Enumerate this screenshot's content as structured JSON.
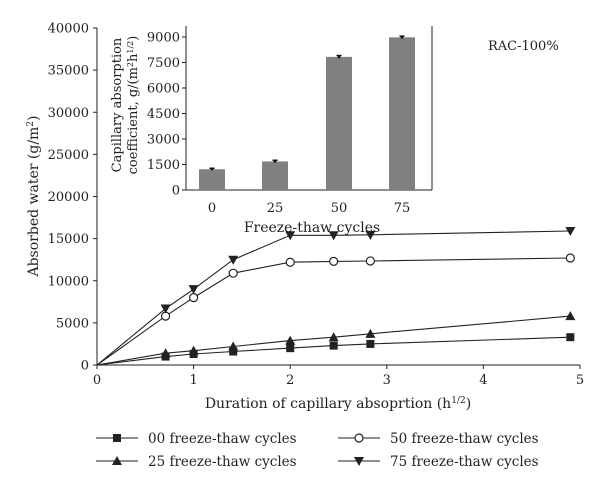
{
  "chart_data": [
    {
      "type": "line",
      "xlabel": "Duration of capillary absoprtion (h",
      "xlabel_sup": "1/2",
      "xlabel_suffix": ")",
      "ylabel": "Absorbed water (g/m",
      "ylabel_sup": "2",
      "ylabel_suffix": ")",
      "xlim": [
        0,
        5
      ],
      "ylim": [
        0,
        40000
      ],
      "x_ticks": [
        "0",
        "1",
        "2",
        "3",
        "4",
        "5"
      ],
      "y_ticks": [
        "0",
        "5000",
        "10000",
        "15000",
        "20000",
        "25000",
        "30000",
        "35000",
        "40000"
      ],
      "grid": false,
      "annotation": "RAC-100%",
      "legend_position": "bottom",
      "series": [
        {
          "name": "00 freeze-thaw cycles",
          "marker": "square",
          "x": [
            0,
            0.71,
            1.0,
            1.41,
            2.0,
            2.45,
            2.83,
            4.9
          ],
          "y": [
            0,
            1000,
            1300,
            1600,
            2000,
            2300,
            2500,
            3300
          ]
        },
        {
          "name": "25 freeze-thaw cycles",
          "marker": "triangle-up",
          "x": [
            0,
            0.71,
            1.0,
            1.41,
            2.0,
            2.45,
            2.83,
            4.9
          ],
          "y": [
            0,
            1400,
            1700,
            2200,
            2900,
            3300,
            3700,
            5800
          ]
        },
        {
          "name": "50 freeze-thaw cycles",
          "marker": "circle-open",
          "x": [
            0,
            0.71,
            1.0,
            1.41,
            2.0,
            2.45,
            2.83,
            4.9
          ],
          "y": [
            0,
            5800,
            8000,
            10900,
            12200,
            12300,
            12350,
            12700
          ]
        },
        {
          "name": "75 freeze-thaw cycles",
          "marker": "triangle-down",
          "x": [
            0,
            0.71,
            1.0,
            1.41,
            2.0,
            2.45,
            2.83,
            4.9
          ],
          "y": [
            0,
            6700,
            9000,
            12500,
            15400,
            15400,
            15450,
            15900
          ]
        }
      ]
    },
    {
      "type": "bar",
      "categories": [
        "0",
        "25",
        "50",
        "75"
      ],
      "values": [
        1220,
        1680,
        7830,
        8980
      ],
      "errors": [
        60,
        70,
        80,
        70
      ],
      "xlabel": "Freeze-thaw cycles",
      "ylabel_line1": "Capillary absorption",
      "ylabel_line2": "coefficient, g/(m",
      "ylabel_line2_sup1": "2",
      "ylabel_line2_mid": "h",
      "ylabel_line2_sup2": "1/2",
      "ylabel_line2_suffix": ")",
      "ylim": [
        0,
        9000
      ],
      "y_ticks": [
        "0",
        "1500",
        "3000",
        "4500",
        "6000",
        "7500",
        "9000"
      ],
      "bar_color": "#808080"
    }
  ]
}
